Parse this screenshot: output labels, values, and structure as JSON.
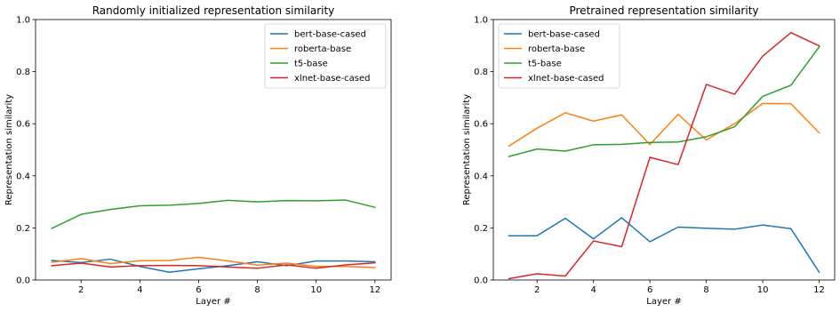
{
  "chart_data": [
    {
      "type": "line",
      "title": "Randomly initialized representation similarity",
      "xlabel": "Layer #",
      "ylabel": "Representation similarity",
      "x": [
        1,
        2,
        3,
        4,
        5,
        6,
        7,
        8,
        9,
        10,
        11,
        12
      ],
      "xticks": [
        2,
        4,
        6,
        8,
        10,
        12
      ],
      "yticks": [
        0.0,
        0.2,
        0.4,
        0.6,
        0.8,
        1.0
      ],
      "xlim": [
        0.45,
        12.55
      ],
      "ylim": [
        0.0,
        1.0
      ],
      "legend": "top-right",
      "grid": false,
      "series": [
        {
          "name": "bert-base-cased",
          "color": "#1f77b4",
          "values": [
            0.075,
            0.067,
            0.08,
            0.052,
            0.03,
            0.043,
            0.055,
            0.07,
            0.055,
            0.073,
            0.073,
            0.07
          ]
        },
        {
          "name": "roberta-base",
          "color": "#ff7f0e",
          "values": [
            0.068,
            0.082,
            0.063,
            0.074,
            0.075,
            0.087,
            0.073,
            0.057,
            0.065,
            0.052,
            0.052,
            0.048
          ]
        },
        {
          "name": "t5-base",
          "color": "#2ca02c",
          "values": [
            0.198,
            0.252,
            0.271,
            0.285,
            0.287,
            0.294,
            0.306,
            0.3,
            0.305,
            0.304,
            0.307,
            0.279
          ]
        },
        {
          "name": "xlnet-base-cased",
          "color": "#d62728",
          "values": [
            0.055,
            0.065,
            0.05,
            0.055,
            0.056,
            0.055,
            0.05,
            0.045,
            0.058,
            0.045,
            0.058,
            0.066
          ]
        }
      ]
    },
    {
      "type": "line",
      "title": "Pretrained representation similarity",
      "xlabel": "Layer #",
      "ylabel": "Representation similarity",
      "x": [
        1,
        2,
        3,
        4,
        5,
        6,
        7,
        8,
        9,
        10,
        11,
        12
      ],
      "xticks": [
        2,
        4,
        6,
        8,
        10,
        12
      ],
      "yticks": [
        0.0,
        0.2,
        0.4,
        0.6,
        0.8,
        1.0
      ],
      "xlim": [
        0.45,
        12.55
      ],
      "ylim": [
        0.0,
        1.0
      ],
      "legend": "top-left",
      "grid": false,
      "series": [
        {
          "name": "bert-base-cased",
          "color": "#1f77b4",
          "values": [
            0.17,
            0.17,
            0.237,
            0.158,
            0.239,
            0.147,
            0.203,
            0.199,
            0.195,
            0.211,
            0.197,
            0.03
          ]
        },
        {
          "name": "roberta-base",
          "color": "#ff7f0e",
          "values": [
            0.514,
            0.583,
            0.642,
            0.61,
            0.634,
            0.52,
            0.636,
            0.538,
            0.6,
            0.678,
            0.677,
            0.565
          ]
        },
        {
          "name": "t5-base",
          "color": "#2ca02c",
          "values": [
            0.474,
            0.503,
            0.495,
            0.519,
            0.521,
            0.528,
            0.53,
            0.55,
            0.588,
            0.705,
            0.748,
            0.895
          ]
        },
        {
          "name": "xlnet-base-cased",
          "color": "#d62728",
          "values": [
            0.005,
            0.024,
            0.015,
            0.15,
            0.128,
            0.471,
            0.443,
            0.751,
            0.713,
            0.86,
            0.95,
            0.899
          ]
        }
      ]
    }
  ]
}
